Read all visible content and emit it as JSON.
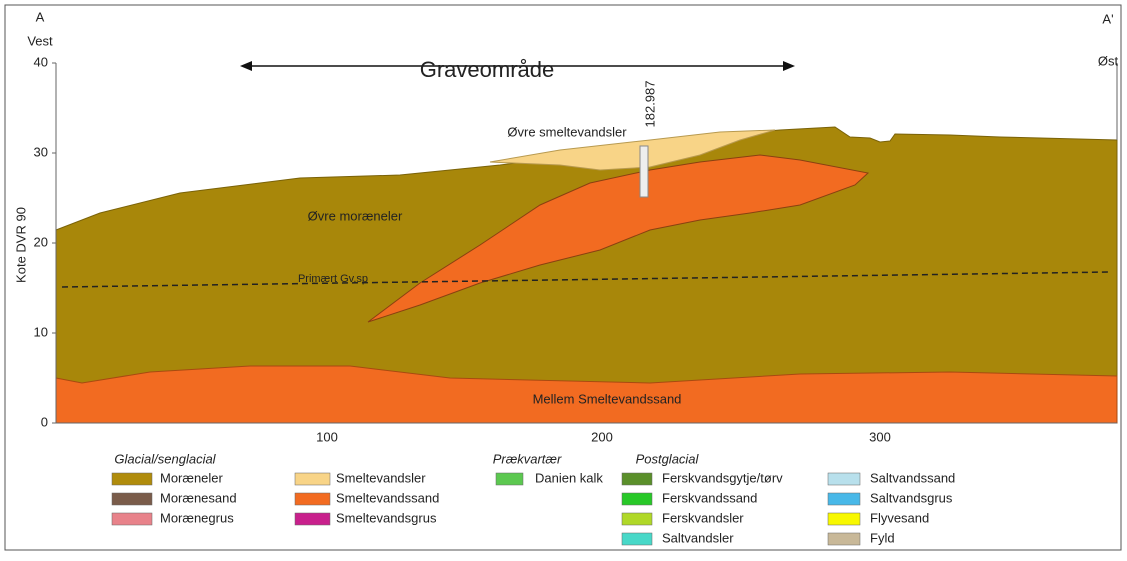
{
  "section": {
    "left_end": "A",
    "left_side": "Vest",
    "right_end": "A'",
    "right_side": "Øst",
    "y_label": "Kote DVR 90",
    "yticks": [
      "40",
      "30",
      "20",
      "10",
      "0"
    ],
    "xticks": [
      "100",
      "200",
      "300"
    ],
    "title": "Graveområde",
    "borehole": "182.987",
    "labels": {
      "upper_clay": "Øvre smeltevandsler",
      "upper_till": "Øvre moræneler",
      "groundwater": "Primært Gv.sp",
      "middle_sand": "Mellem Smeltevandssand"
    }
  },
  "legend": {
    "groups": [
      {
        "title": "Glacial/senglacial",
        "items": [
          {
            "label": "Moræneler",
            "color": "#b08c0c"
          },
          {
            "label": "Morænesand",
            "color": "#7a5c4a"
          },
          {
            "label": "Morænegrus",
            "color": "#e8828a"
          }
        ]
      },
      {
        "title": null,
        "items": [
          {
            "label": "Smeltevandsler",
            "color": "#f8d487"
          },
          {
            "label": "Smeltevandssand",
            "color": "#f26b21"
          },
          {
            "label": "Smeltevandsgrus",
            "color": "#c8208c"
          }
        ]
      },
      {
        "title": "Prækvartær",
        "items": [
          {
            "label": "Danien kalk",
            "color": "#5cc850"
          }
        ]
      },
      {
        "title": "Postglacial",
        "items": [
          {
            "label": "Ferskvandsgytje/tørv",
            "color": "#5a8f2a"
          },
          {
            "label": "Ferskvandssand",
            "color": "#28c828"
          },
          {
            "label": "Ferskvandsler",
            "color": "#b0d828"
          },
          {
            "label": "Saltvandsler",
            "color": "#48d8c8"
          }
        ]
      },
      {
        "title": null,
        "items": [
          {
            "label": "Saltvandssand",
            "color": "#b8e0ec"
          },
          {
            "label": "Saltvandsgrus",
            "color": "#48b8e8"
          },
          {
            "label": "Flyvesand",
            "color": "#f8f800"
          },
          {
            "label": "Fyld",
            "color": "#c8b898"
          }
        ]
      }
    ]
  }
}
